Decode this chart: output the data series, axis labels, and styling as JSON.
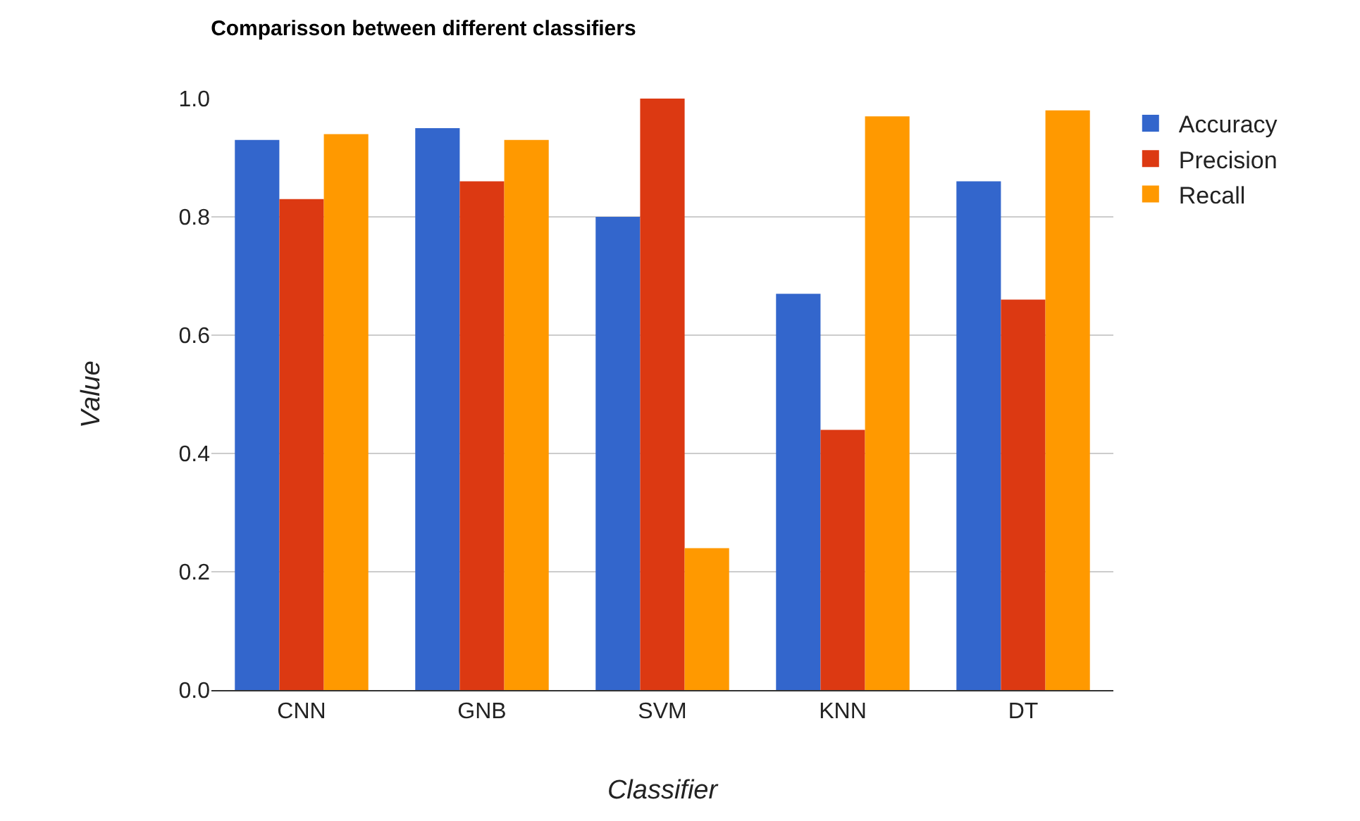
{
  "chart_data": {
    "type": "bar",
    "title": "Comparisson between different classifiers",
    "xlabel": "Classifier",
    "ylabel": "Value",
    "categories": [
      "CNN",
      "GNB",
      "SVM",
      "KNN",
      "DT"
    ],
    "series": [
      {
        "name": "Accuracy",
        "color": "#3366cc",
        "values": [
          0.93,
          0.95,
          0.8,
          0.67,
          0.86
        ]
      },
      {
        "name": "Precision",
        "color": "#dc3912",
        "values": [
          0.83,
          0.86,
          1.0,
          0.44,
          0.66
        ]
      },
      {
        "name": "Recall",
        "color": "#ff9900",
        "values": [
          0.94,
          0.93,
          0.24,
          0.97,
          0.98
        ]
      }
    ],
    "ylim": [
      0,
      1.0
    ],
    "yticks": [
      {
        "value": 0,
        "label": "0.0"
      },
      {
        "value": 0.2,
        "label": "0.2"
      },
      {
        "value": 0.4,
        "label": "0.4"
      },
      {
        "value": 0.6,
        "label": "0.6"
      },
      {
        "value": 0.8,
        "label": "0.8"
      },
      {
        "value": 1.0,
        "label": "1.0"
      }
    ],
    "grid": "y",
    "legend": "top right"
  }
}
